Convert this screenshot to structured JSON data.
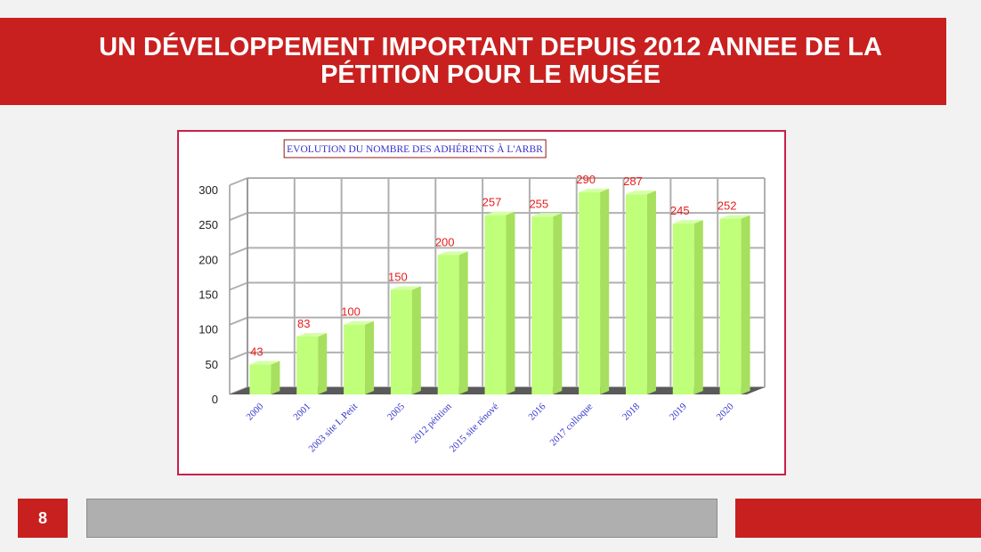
{
  "slide": {
    "title_line1": "UN DÉVELOPPEMENT IMPORTANT DEPUIS 2012 ANNEE DE LA",
    "title_line2": "PÉTITION POUR LE MUSÉE",
    "page_number": "8"
  },
  "colors": {
    "accent_red": "#c8201f",
    "bar_green": "#bfff7a",
    "value_label": "#e81c1c",
    "axis_label_blue": "#3333cc"
  },
  "chart_data": {
    "type": "bar",
    "title": "EVOLUTION DU NOMBRE DES ADHÉRENTS À L'ARBR",
    "categories": [
      "2000",
      "2001",
      "2003 site L.Petit",
      "2005",
      "2012 pétition",
      "2015 site rénové",
      "2016",
      "2017 colloque",
      "2018",
      "2019",
      "2020"
    ],
    "values": [
      43,
      83,
      100,
      150,
      200,
      257,
      255,
      290,
      287,
      245,
      252
    ],
    "ylim": [
      0,
      300
    ],
    "yticks": [
      0,
      50,
      100,
      150,
      200,
      250,
      300
    ],
    "xlabel": "",
    "ylabel": "",
    "grid": true,
    "legend": "none"
  }
}
